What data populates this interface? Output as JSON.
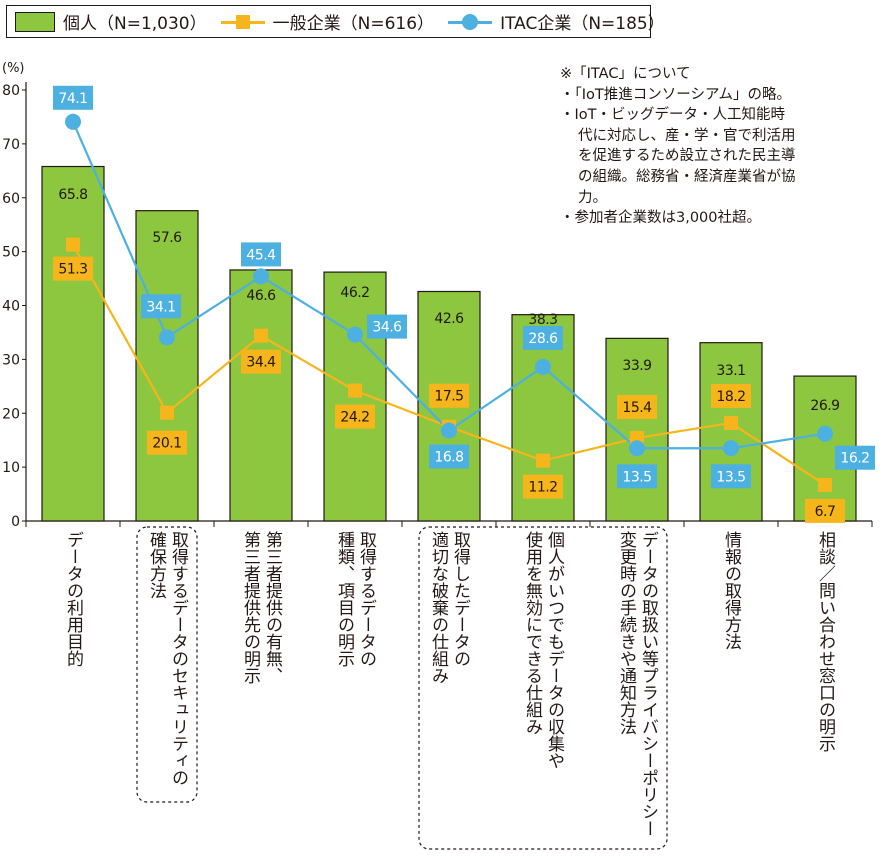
{
  "legend": {
    "personal": "個人（N=1,030）",
    "general": "一般企業（N=616）",
    "itac": "ITAC企業（N=185）"
  },
  "note": {
    "line1": "※「ITAC」について",
    "line2": "・「IoT推進コンソーシアム」の略。",
    "line3": "・IoT・ビッグデータ・人工知能時",
    "line4": "代に対応し、産・学・官で利活用",
    "line5": "を促進するため設立された民主導",
    "line6": "の組織。総務省・経済産業省が協",
    "line7": "力。",
    "line8": "・参加者企業数は3,000社超。"
  },
  "colors": {
    "bar": "#8dc63f",
    "general": "#f7b51c",
    "itac": "#4cb0e1",
    "axis": "#231815"
  },
  "chart_data": {
    "type": "bar",
    "ylabel": "(%)",
    "ylim": [
      0,
      80
    ],
    "yticks": [
      "0",
      "10",
      "20",
      "30",
      "40",
      "50",
      "60",
      "70",
      "80"
    ],
    "categories": [
      "データの利用目的",
      "取得するデータのセキュリティの確保方法",
      "第三者提供の有無、第三者提供先の明示",
      "取得するデータの種類、項目の明示",
      "取得したデータの適切な破棄の仕組み",
      "個人がいつでもデータの収集や使用を無効にできる仕組み",
      "データの取扱い等プライバシーポリシー変更時の手続きや通知方法",
      "情報の取得方法",
      "相談／問い合わせ窓口の明示"
    ],
    "category_lines": [
      [
        "データの利用目的"
      ],
      [
        "取得するデータのセキュリティの",
        "確保方法"
      ],
      [
        "第三者提供の有無、",
        "第三者提供先の明示"
      ],
      [
        "取得するデータの",
        "種類、項目の明示"
      ],
      [
        "取得したデータの",
        "適切な破棄の仕組み"
      ],
      [
        "個人がいつでもデータの収集や",
        "使用を無効にできる仕組み"
      ],
      [
        "データの取扱い等プライバシーポリシー",
        "変更時の手続きや通知方法"
      ],
      [
        "情報の取得方法"
      ],
      [
        "相談／問い合わせ窓口の明示"
      ]
    ],
    "boxed_categories": [
      1,
      4,
      5,
      6
    ],
    "series": [
      {
        "name": "個人（N=1,030）",
        "kind": "bar",
        "values": [
          65.8,
          57.6,
          46.6,
          46.2,
          42.6,
          38.3,
          33.9,
          33.1,
          26.9
        ],
        "labels": [
          "65.8",
          "57.6",
          "46.6",
          "46.2",
          "42.6",
          "38.3",
          "33.9",
          "33.1",
          "26.9"
        ]
      },
      {
        "name": "一般企業（N=616）",
        "kind": "line",
        "marker": "square",
        "values": [
          51.3,
          20.1,
          34.4,
          24.2,
          17.5,
          11.2,
          15.4,
          18.2,
          6.7
        ],
        "labels": [
          "51.3",
          "20.1",
          "34.4",
          "24.2",
          "17.5",
          "11.2",
          "15.4",
          "18.2",
          "6.7"
        ]
      },
      {
        "name": "ITAC企業（N=185）",
        "kind": "line",
        "marker": "circle",
        "values": [
          74.1,
          34.1,
          45.4,
          34.6,
          16.8,
          28.6,
          13.5,
          13.5,
          16.2
        ],
        "labels": [
          "74.1",
          "34.1",
          "45.4",
          "34.6",
          "16.8",
          "28.6",
          "13.5",
          "13.5",
          "16.2"
        ]
      }
    ]
  }
}
